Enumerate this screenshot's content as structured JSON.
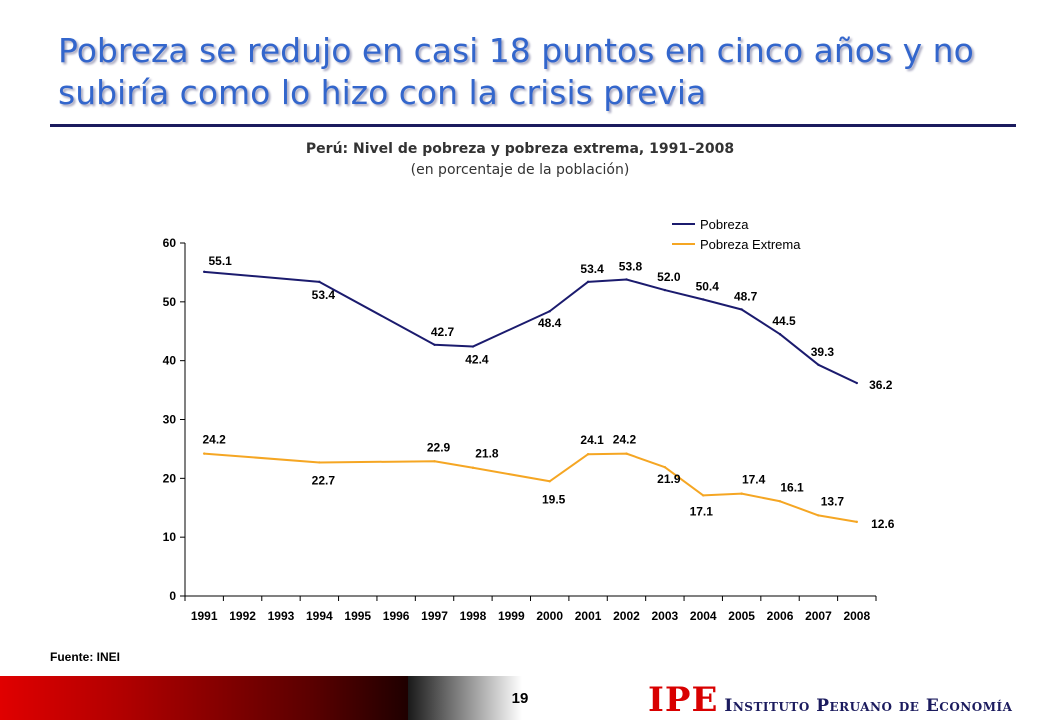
{
  "slide": {
    "title": "Pobreza se redujo en casi 18 puntos en cinco años y no subiría como lo hizo con la crisis previa",
    "source": "Fuente: INEI",
    "page_number": "19",
    "logo_mark": "IPE",
    "logo_text": "Instituto Peruano de Economía"
  },
  "chart_data": {
    "type": "line",
    "title": "Perú: Nivel de pobreza y pobreza extrema, 1991–2008",
    "subtitle": "(en porcentaje de la población)",
    "categories": [
      "1991",
      "1992",
      "1993",
      "1994",
      "1995",
      "1996",
      "1997",
      "1998",
      "1999",
      "2000",
      "2001",
      "2002",
      "2003",
      "2004",
      "2005",
      "2006",
      "2007",
      "2008"
    ],
    "x": [
      1991,
      1994,
      1997,
      1998,
      2000,
      2001,
      2002,
      2003,
      2004,
      2005,
      2006,
      2007,
      2008
    ],
    "series": [
      {
        "name": "Pobreza",
        "color": "#1b1b6e",
        "values": [
          55.1,
          53.4,
          42.7,
          42.4,
          48.4,
          53.4,
          53.8,
          52.0,
          50.4,
          48.7,
          44.5,
          39.3,
          36.2
        ],
        "labels": [
          "55.1",
          "53.4",
          "42.7",
          "42.4",
          "48.4",
          "53.4",
          "53.8",
          "52.0",
          "50.4",
          "48.7",
          "44.5",
          "39.3",
          "36.2"
        ]
      },
      {
        "name": "Pobreza Extrema",
        "color": "#f5a623",
        "values": [
          24.2,
          22.7,
          22.9,
          21.8,
          19.5,
          24.1,
          24.2,
          21.9,
          17.1,
          17.4,
          16.1,
          13.7,
          12.6
        ],
        "labels": [
          "24.2",
          "22.7",
          "22.9",
          "21.8",
          "19.5",
          "24.1",
          "24.2",
          "21.9",
          "17.1",
          "17.4",
          "16.1",
          "13.7",
          "12.6"
        ]
      }
    ],
    "ylim": [
      0,
      60
    ],
    "yticks": [
      "0",
      "10",
      "20",
      "30",
      "40",
      "50",
      "60"
    ],
    "grid": false,
    "legend": "top-right"
  }
}
